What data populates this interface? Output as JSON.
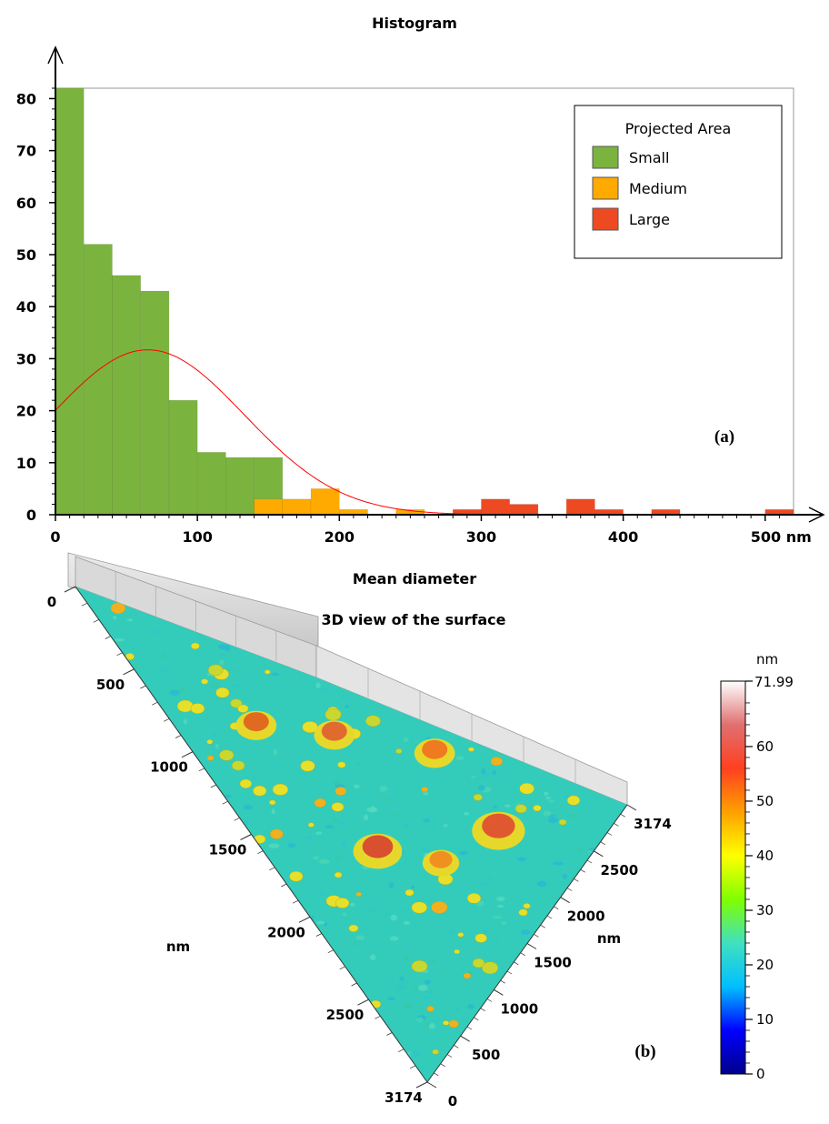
{
  "chart_data": [
    {
      "type": "bar",
      "title": "Histogram",
      "xlabel": "Mean diameter",
      "ylabel": "",
      "panel_label": "(a)",
      "xlim": [
        0,
        520
      ],
      "ylim": [
        0,
        82
      ],
      "x_ticks": [
        {
          "value": 0,
          "label": "0"
        },
        {
          "value": 100,
          "label": "100"
        },
        {
          "value": 200,
          "label": "200"
        },
        {
          "value": 300,
          "label": "300"
        },
        {
          "value": 400,
          "label": "400"
        },
        {
          "value": 500,
          "label": "500 nm"
        }
      ],
      "y_ticks": [
        0,
        10,
        20,
        30,
        40,
        50,
        60,
        70,
        80
      ],
      "legend": {
        "title": "Projected Area",
        "position": "top-right",
        "entries": [
          {
            "name": "Small",
            "color": "#7bb33f"
          },
          {
            "name": "Medium",
            "color": "#ffaa00"
          },
          {
            "name": "Large",
            "color": "#ee4a22"
          }
        ]
      },
      "bin_width": 20,
      "bins": [
        {
          "x": 0,
          "value": 82,
          "group": "Small"
        },
        {
          "x": 20,
          "value": 52,
          "group": "Small"
        },
        {
          "x": 40,
          "value": 46,
          "group": "Small"
        },
        {
          "x": 60,
          "value": 43,
          "group": "Small"
        },
        {
          "x": 80,
          "value": 22,
          "group": "Small"
        },
        {
          "x": 100,
          "value": 12,
          "group": "Small"
        },
        {
          "x": 120,
          "value": 11,
          "group": "Small"
        },
        {
          "x": 140,
          "value": 11,
          "group": "Small"
        },
        {
          "x": 140,
          "value": 3,
          "group": "Medium"
        },
        {
          "x": 160,
          "value": 3,
          "group": "Medium"
        },
        {
          "x": 180,
          "value": 5,
          "group": "Medium"
        },
        {
          "x": 200,
          "value": 1,
          "group": "Medium"
        },
        {
          "x": 240,
          "value": 1,
          "group": "Medium"
        },
        {
          "x": 280,
          "value": 1,
          "group": "Large"
        },
        {
          "x": 300,
          "value": 3,
          "group": "Large"
        },
        {
          "x": 320,
          "value": 2,
          "group": "Large"
        },
        {
          "x": 360,
          "value": 3,
          "group": "Large"
        },
        {
          "x": 380,
          "value": 1,
          "group": "Large"
        },
        {
          "x": 420,
          "value": 1,
          "group": "Large"
        },
        {
          "x": 500,
          "value": 1,
          "group": "Large"
        }
      ],
      "fit_curve": {
        "type": "gaussian",
        "color": "#ff0000",
        "peak_x": 65,
        "peak_y": 31.7,
        "sigma": 68
      }
    },
    {
      "type": "heatmap",
      "title": "3D view of the surface",
      "panel_label": "(b)",
      "x_axis": {
        "label": "nm",
        "ticks": [
          "0",
          "500",
          "1000",
          "1500",
          "2000",
          "2500",
          "3174"
        ]
      },
      "y_axis": {
        "label": "nm",
        "ticks": [
          "0",
          "500",
          "1000",
          "1500",
          "2000",
          "2500",
          "3174"
        ]
      },
      "colorbar": {
        "unit": "nm",
        "max_label": "71.99",
        "range": [
          0,
          71.99
        ],
        "ticks": [
          "0",
          "10",
          "20",
          "30",
          "40",
          "50",
          "60"
        ],
        "colors": [
          "#00008b",
          "#0000ff",
          "#00bfff",
          "#40e0c0",
          "#7fff00",
          "#ffff00",
          "#ffa000",
          "#ff4020",
          "#e07070",
          "#ffffff"
        ]
      }
    }
  ]
}
